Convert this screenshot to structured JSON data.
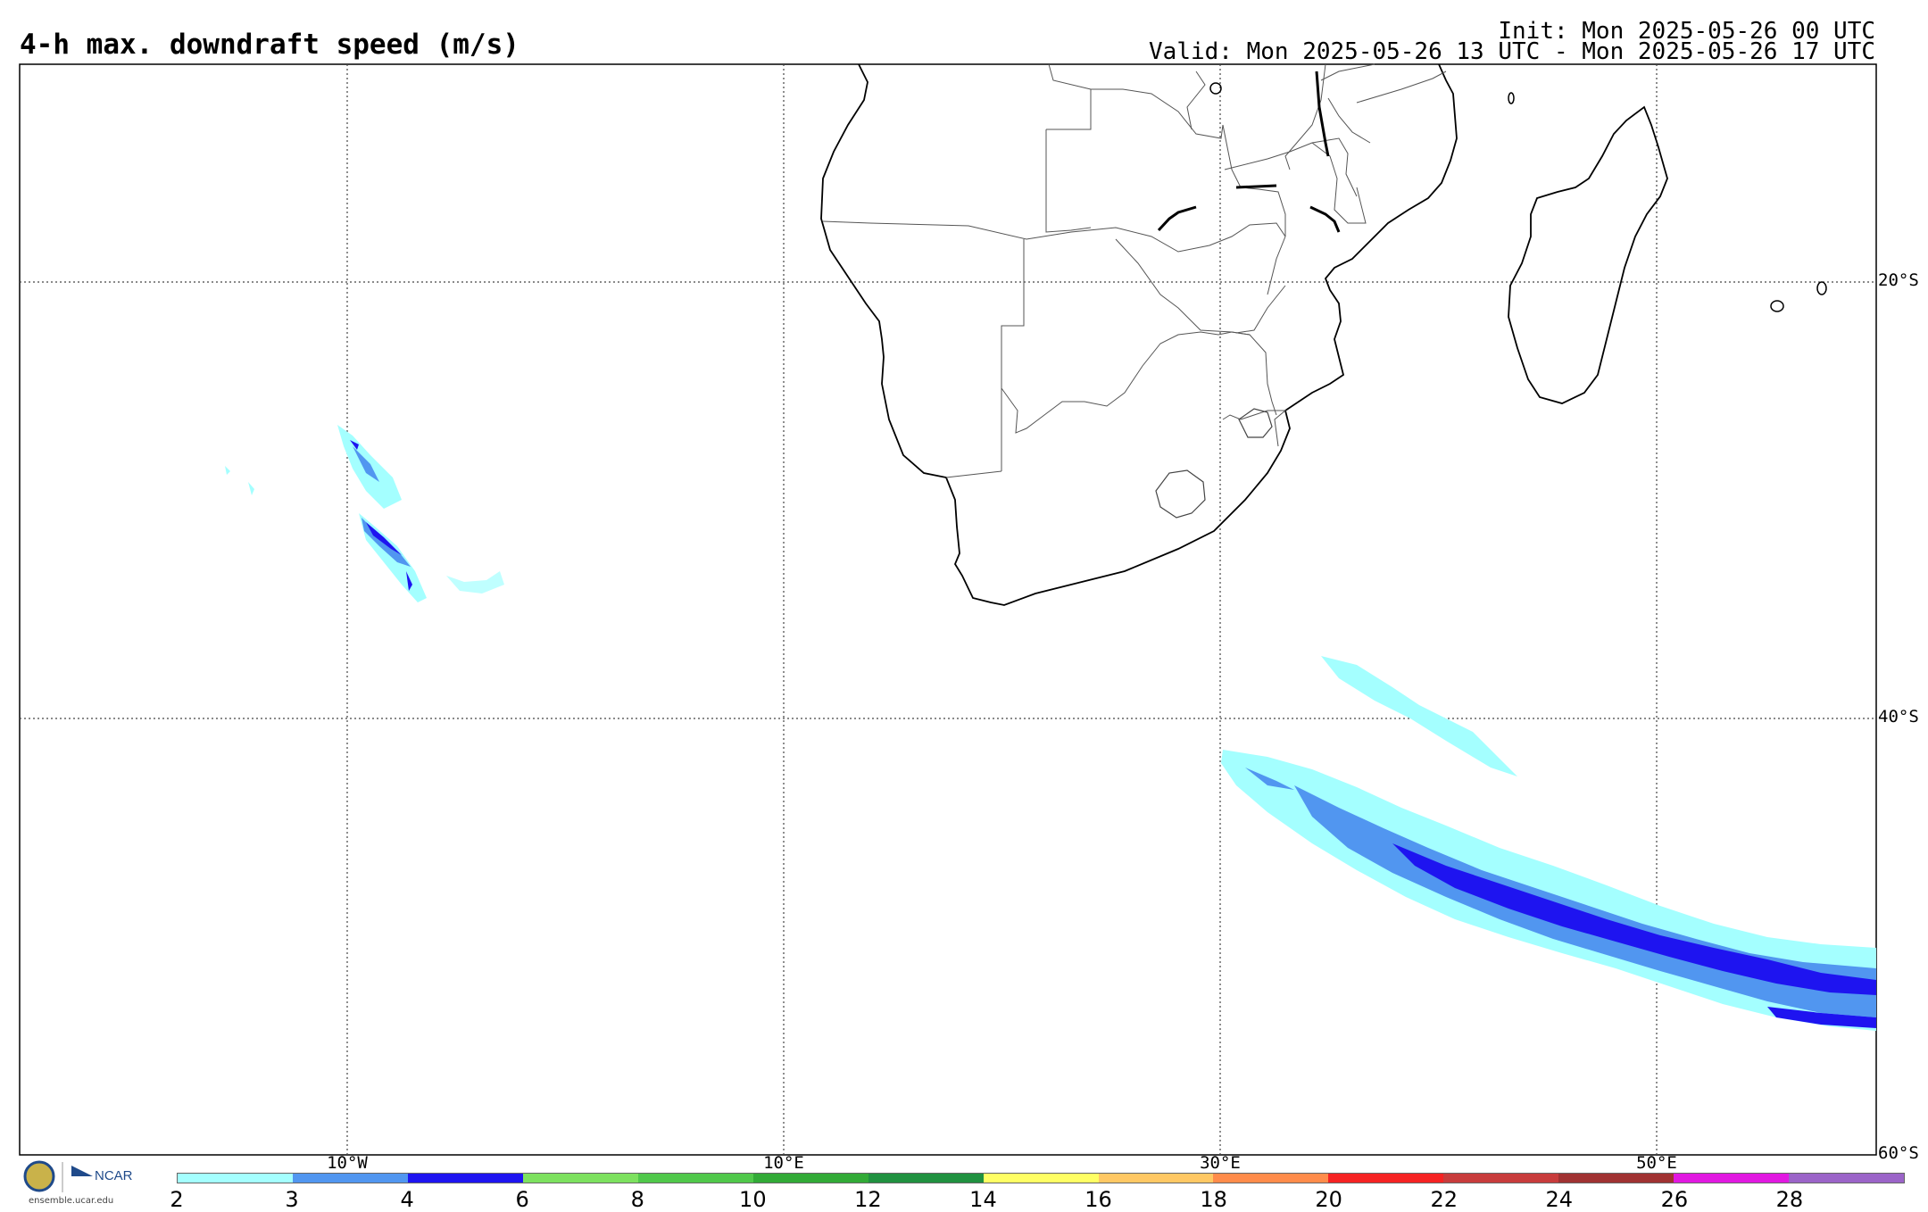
{
  "header": {
    "title": "4-h max. downdraft speed (m/s)",
    "init": "Init: Mon 2025-05-26 00 UTC",
    "valid": "Valid: Mon 2025-05-26 13 UTC - Mon 2025-05-26 17 UTC"
  },
  "map": {
    "longitude_labels": [
      "10°W",
      "10°E",
      "30°E",
      "50°E"
    ],
    "latitude_labels": [
      "20°S",
      "40°S",
      "60°S"
    ]
  },
  "colorbar": {
    "ticks": [
      "2",
      "3",
      "4",
      "6",
      "8",
      "10",
      "12",
      "14",
      "16",
      "18",
      "20",
      "22",
      "24",
      "26",
      "28"
    ],
    "colors": [
      "#a4ffff",
      "#5196f0",
      "#1e14f0",
      "#7de15f",
      "#50c84b",
      "#32aa37",
      "#209140",
      "#ffff64",
      "#ffc864",
      "#ff8c4b",
      "#f52323",
      "#c83c3c",
      "#a03232",
      "#e119e1",
      "#9b64c8"
    ]
  },
  "branding": {
    "logo_label": "NCAR",
    "url": "ensemble.ucar.edu"
  }
}
